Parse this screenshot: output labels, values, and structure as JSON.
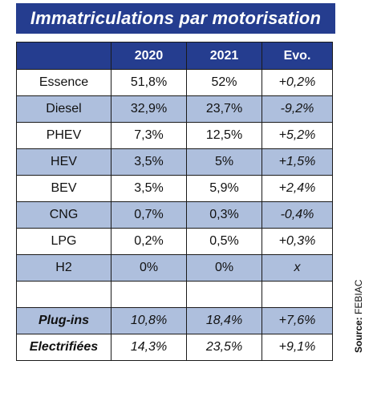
{
  "title": "Immatriculations par motorisation",
  "source": {
    "label": "Source:",
    "value": "FEBIAC"
  },
  "colors": {
    "header_bg": "#253d8f",
    "shaded_row_bg": "#aebfdd",
    "header_text": "#ffffff"
  },
  "chart_data": {
    "type": "table",
    "title": "Immatriculations par motorisation",
    "columns": [
      "",
      "2020",
      "2021",
      "Evo."
    ],
    "rows": [
      {
        "label": "Essence",
        "v2020": "51,8%",
        "v2021": "52%",
        "evo": "+0,2%"
      },
      {
        "label": "Diesel",
        "v2020": "32,9%",
        "v2021": "23,7%",
        "evo": "-9,2%"
      },
      {
        "label": "PHEV",
        "v2020": "7,3%",
        "v2021": "12,5%",
        "evo": "+5,2%"
      },
      {
        "label": "HEV",
        "v2020": "3,5%",
        "v2021": "5%",
        "evo": "+1,5%"
      },
      {
        "label": "BEV",
        "v2020": "3,5%",
        "v2021": "5,9%",
        "evo": "+2,4%"
      },
      {
        "label": "CNG",
        "v2020": "0,7%",
        "v2021": "0,3%",
        "evo": "-0,4%"
      },
      {
        "label": "LPG",
        "v2020": "0,2%",
        "v2021": "0,5%",
        "evo": "+0,3%"
      },
      {
        "label": "H2",
        "v2020": "0%",
        "v2021": "0%",
        "evo": "x"
      },
      {
        "label": "",
        "v2020": "",
        "v2021": "",
        "evo": ""
      },
      {
        "label": "Plug-ins",
        "v2020": "10,8%",
        "v2021": "18,4%",
        "evo": "+7,6%"
      },
      {
        "label": "Electrifiées",
        "v2020": "14,3%",
        "v2021": "23,5%",
        "evo": "+9,1%"
      }
    ]
  }
}
